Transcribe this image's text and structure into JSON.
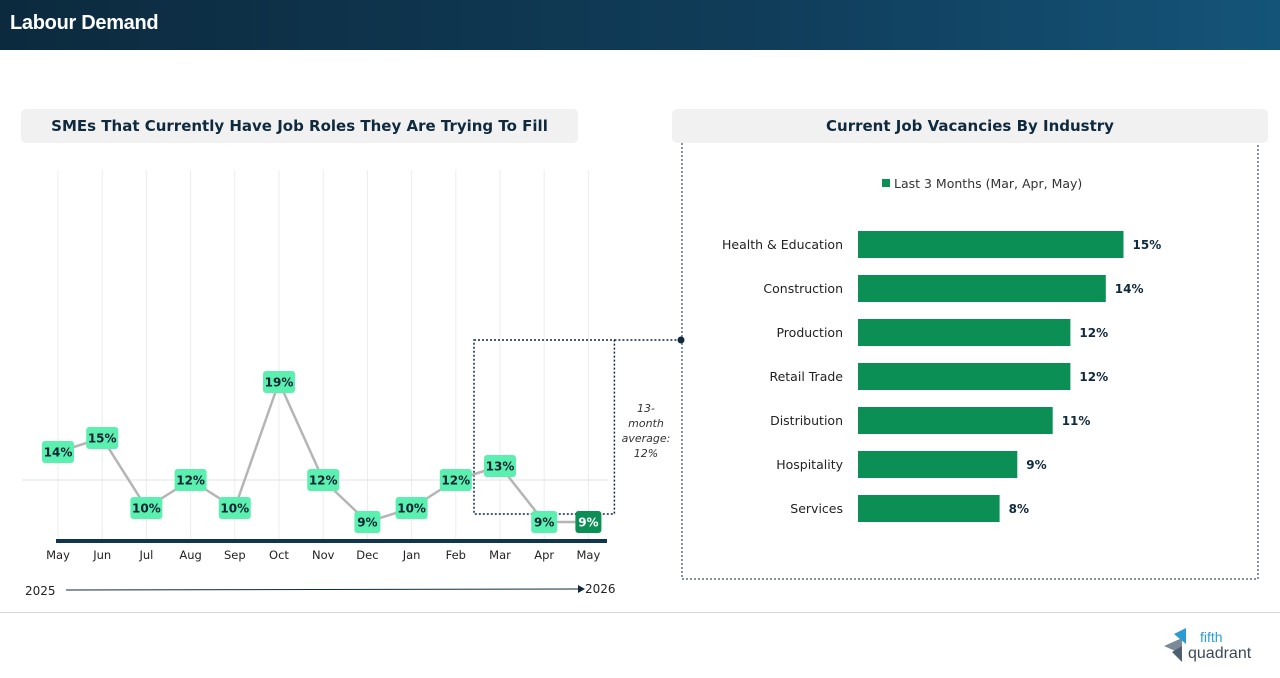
{
  "header": {
    "title": "Labour Demand"
  },
  "left_panel": {
    "title": "SMEs That Currently Have Job Roles They Are Trying To Fill"
  },
  "right_panel": {
    "title": "Current Job Vacancies By Industry"
  },
  "brand": {
    "logo_line1": "fifth",
    "logo_line2": "quadrant"
  },
  "colors": {
    "header_dark": "#0c2a3e",
    "point_light": "#5bf0b0",
    "point_highlight": "#0b8f55",
    "bar": "#0b8f55",
    "line": "#b5b5b5",
    "axis": "#0f3550"
  },
  "chart_data": [
    {
      "type": "line",
      "title": "SMEs That Currently Have Job Roles They Are Trying To Fill",
      "categories": [
        "May",
        "Jun",
        "Jul",
        "Aug",
        "Sep",
        "Oct",
        "Nov",
        "Dec",
        "Jan",
        "Feb",
        "Mar",
        "Apr",
        "May"
      ],
      "values": [
        14,
        15,
        10,
        12,
        10,
        19,
        12,
        9,
        10,
        12,
        13,
        9,
        9
      ],
      "value_labels": [
        "14%",
        "15%",
        "10%",
        "12%",
        "10%",
        "19%",
        "12%",
        "9%",
        "10%",
        "12%",
        "13%",
        "9%",
        "9%"
      ],
      "average_value": 12,
      "average_annotation": [
        "13-",
        "month",
        "average:",
        "12%"
      ],
      "period_start": "2025",
      "period_end": "2026",
      "highlight_range": [
        "Mar",
        "May"
      ],
      "ylim": [
        0,
        25
      ],
      "grid": "vertical"
    },
    {
      "type": "bar",
      "orientation": "horizontal",
      "title": "Current Job Vacancies By Industry",
      "categories": [
        "Health & Education",
        "Construction",
        "Production",
        "Retail Trade",
        "Distribution",
        "Hospitality",
        "Services"
      ],
      "series": [
        {
          "name": "Last 3 Months (Mar, Apr, May)",
          "values": [
            15,
            14,
            12,
            12,
            11,
            9,
            8
          ]
        }
      ],
      "value_labels": [
        "15%",
        "14%",
        "12%",
        "12%",
        "11%",
        "9%",
        "8%"
      ],
      "legend": "top"
    }
  ]
}
